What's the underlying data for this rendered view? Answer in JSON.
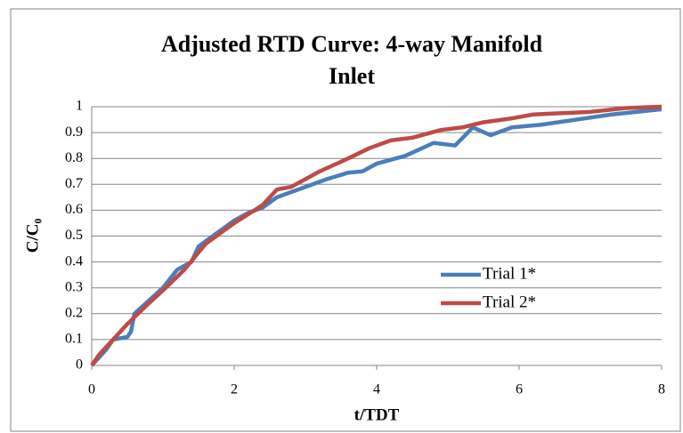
{
  "chart_data": {
    "type": "line",
    "title": [
      "Adjusted RTD Curve: 4-way Manifold",
      "Inlet"
    ],
    "xlabel": "t/TDT",
    "ylabel": "C/C₀",
    "xlim": [
      0,
      8
    ],
    "xticks": [
      0,
      2,
      4,
      6,
      8
    ],
    "ylim": [
      0,
      1
    ],
    "yticks": [
      0,
      0.1,
      0.2,
      0.3,
      0.4,
      0.5,
      0.6,
      0.7,
      0.8,
      0.9,
      1
    ],
    "grid": true,
    "legend": "right",
    "series": [
      {
        "name": "Trial 1*",
        "color": "#4a7ebb",
        "x": [
          0,
          0.1,
          0.2,
          0.3,
          0.5,
          0.55,
          0.6,
          0.8,
          1.0,
          1.2,
          1.4,
          1.5,
          1.7,
          2.0,
          2.2,
          2.4,
          2.6,
          2.8,
          3.0,
          3.3,
          3.6,
          3.8,
          4.0,
          4.4,
          4.8,
          5.1,
          5.35,
          5.6,
          5.9,
          6.3,
          6.8,
          7.3,
          8.0
        ],
        "values": [
          0,
          0.03,
          0.06,
          0.1,
          0.11,
          0.13,
          0.2,
          0.25,
          0.3,
          0.37,
          0.4,
          0.46,
          0.5,
          0.56,
          0.59,
          0.61,
          0.65,
          0.67,
          0.69,
          0.72,
          0.745,
          0.75,
          0.78,
          0.81,
          0.86,
          0.85,
          0.92,
          0.89,
          0.92,
          0.93,
          0.95,
          0.97,
          0.99
        ]
      },
      {
        "name": "Trial 2*",
        "color": "#be4b48",
        "x": [
          0,
          0.1,
          0.3,
          0.5,
          0.8,
          1.0,
          1.3,
          1.6,
          2.0,
          2.4,
          2.6,
          2.8,
          3.2,
          3.6,
          3.9,
          4.2,
          4.5,
          4.9,
          5.2,
          5.5,
          5.9,
          6.2,
          6.6,
          7.0,
          7.5,
          8.0
        ],
        "values": [
          0,
          0.04,
          0.1,
          0.16,
          0.24,
          0.29,
          0.37,
          0.47,
          0.55,
          0.62,
          0.68,
          0.69,
          0.75,
          0.8,
          0.84,
          0.87,
          0.88,
          0.91,
          0.92,
          0.94,
          0.955,
          0.97,
          0.975,
          0.98,
          0.995,
          1.0
        ]
      }
    ]
  }
}
